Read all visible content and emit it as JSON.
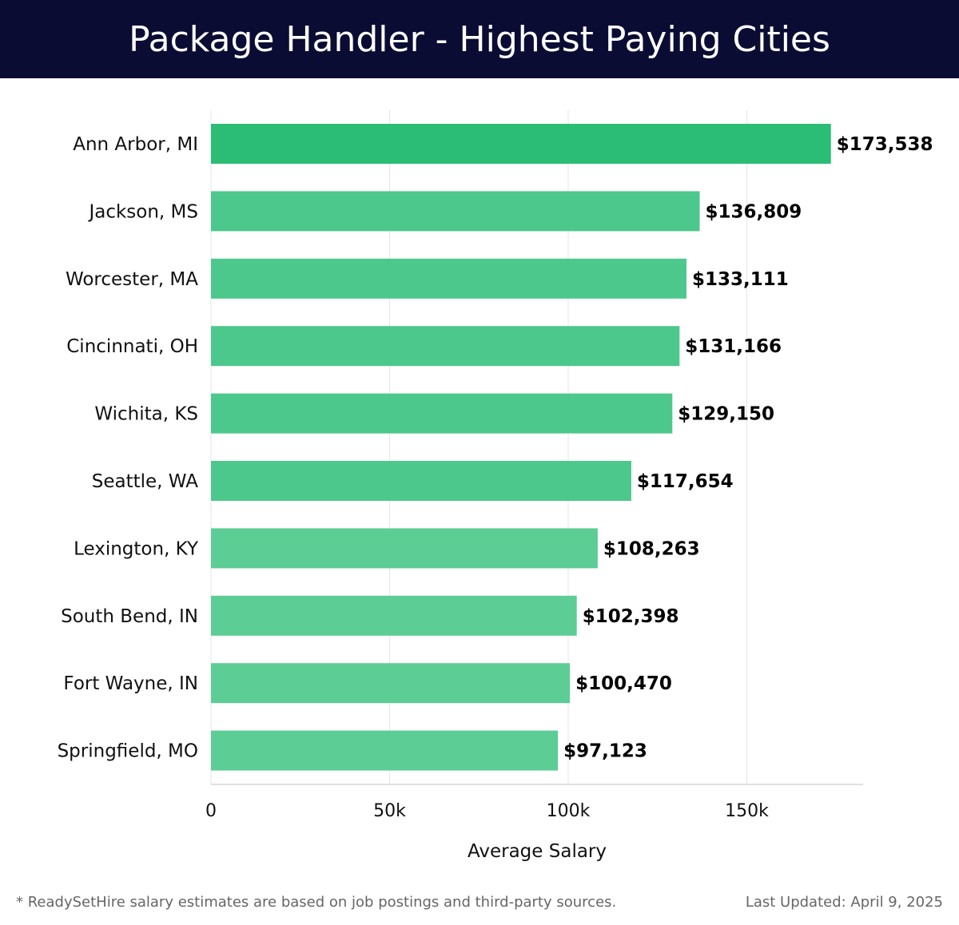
{
  "header": {
    "title": "Package Handler - Highest Paying Cities"
  },
  "footer": {
    "note": "* ReadySetHire salary estimates are based on job postings and third-party sources.",
    "updated": "Last Updated: April 9, 2025"
  },
  "colors": {
    "header_bg": "#0b0c33",
    "bar_top": "#2bbd75",
    "bar_other": "#4cc88c",
    "bar_light": "#5ccd95"
  },
  "chart_data": {
    "type": "bar",
    "orientation": "horizontal",
    "title": "Package Handler - Highest Paying Cities",
    "xlabel": "Average Salary",
    "ylabel": "",
    "xlim": [
      0,
      183000
    ],
    "xticks": [
      0,
      50000,
      100000,
      150000
    ],
    "xtick_labels": [
      "0",
      "50k",
      "100k",
      "150k"
    ],
    "grid": true,
    "categories": [
      "Ann Arbor, MI",
      "Jackson, MS",
      "Worcester, MA",
      "Cincinnati, OH",
      "Wichita, KS",
      "Seattle, WA",
      "Lexington, KY",
      "South Bend, IN",
      "Fort Wayne, IN",
      "Springfield, MO"
    ],
    "values": [
      173538,
      136809,
      133111,
      131166,
      129150,
      117654,
      108263,
      102398,
      100470,
      97123
    ],
    "value_labels": [
      "$173,538",
      "$136,809",
      "$133,111",
      "$131,166",
      "$129,150",
      "$117,654",
      "$108,263",
      "$102,398",
      "$100,470",
      "$97,123"
    ]
  }
}
